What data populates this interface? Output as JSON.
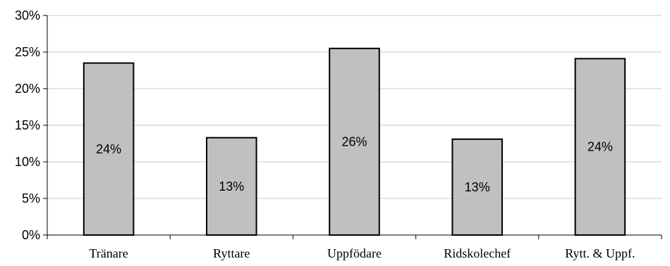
{
  "chart_data": {
    "type": "bar",
    "categories": [
      "Tränare",
      "Ryttare",
      "Uppfödare",
      "Ridskolechef",
      "Rytt. & Uppf."
    ],
    "values": [
      23.5,
      13.3,
      25.5,
      13.1,
      24.1
    ],
    "data_labels": [
      "24%",
      "13%",
      "26%",
      "13%",
      "24%"
    ],
    "y_ticks": [
      "0%",
      "5%",
      "10%",
      "15%",
      "20%",
      "25%",
      "30%"
    ],
    "ylim": [
      0,
      30
    ],
    "grid": true,
    "bar_color": "#c0c0c0"
  }
}
